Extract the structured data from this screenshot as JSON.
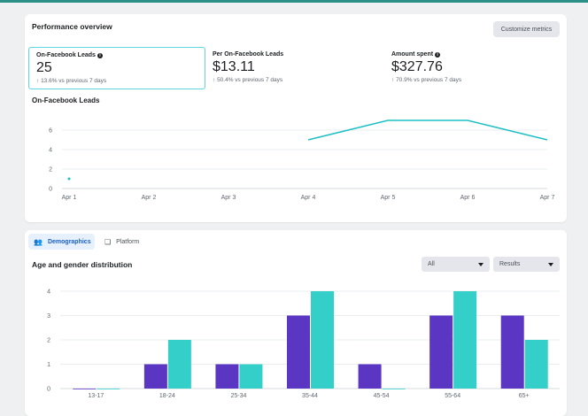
{
  "performance": {
    "title": "Performance overview",
    "customize_label": "Customize metrics",
    "metrics": [
      {
        "label": "On-Facebook Leads",
        "value": "25",
        "change": "13.6% vs previous 7 days"
      },
      {
        "label": "Per On-Facebook Leads",
        "value": "$13.11",
        "change": "50.4% vs previous 7 days"
      },
      {
        "label": "Amount spent",
        "value": "$327.76",
        "change": "70.9% vs previous 7 days"
      }
    ],
    "chart_label": "On-Facebook Leads"
  },
  "demographics": {
    "tabs": [
      {
        "label": "Demographics",
        "icon": "people-icon"
      },
      {
        "label": "Platform",
        "icon": "platform-icon"
      }
    ],
    "title": "Age and gender distribution",
    "filter_value": "All",
    "metric_value": "Results"
  },
  "chart_data": [
    {
      "type": "line",
      "title": "On-Facebook Leads",
      "x": [
        "Apr 1",
        "Apr 2",
        "Apr 3",
        "Apr 4",
        "Apr 5",
        "Apr 6",
        "Apr 7"
      ],
      "series": [
        {
          "values": [
            1,
            null,
            null,
            5,
            7,
            7,
            5
          ]
        }
      ],
      "yticks": [
        0,
        2,
        4,
        6
      ],
      "ylim": [
        0,
        7
      ],
      "grid": true,
      "colors": [
        "#1fbfc4"
      ]
    },
    {
      "type": "bar",
      "title": "Age and gender distribution",
      "categories": [
        "13-17",
        "18-24",
        "25-34",
        "35-44",
        "45-54",
        "55-64",
        "65+"
      ],
      "series": [
        {
          "values": [
            0,
            1,
            1,
            3,
            1,
            3,
            3
          ],
          "color": "#5b36c2"
        },
        {
          "values": [
            0,
            2,
            1,
            4,
            0,
            4,
            2
          ],
          "color": "#33cfc8"
        }
      ],
      "yticks": [
        0,
        1,
        2,
        3,
        4
      ],
      "ylim": [
        0,
        4
      ],
      "grid": true
    }
  ]
}
